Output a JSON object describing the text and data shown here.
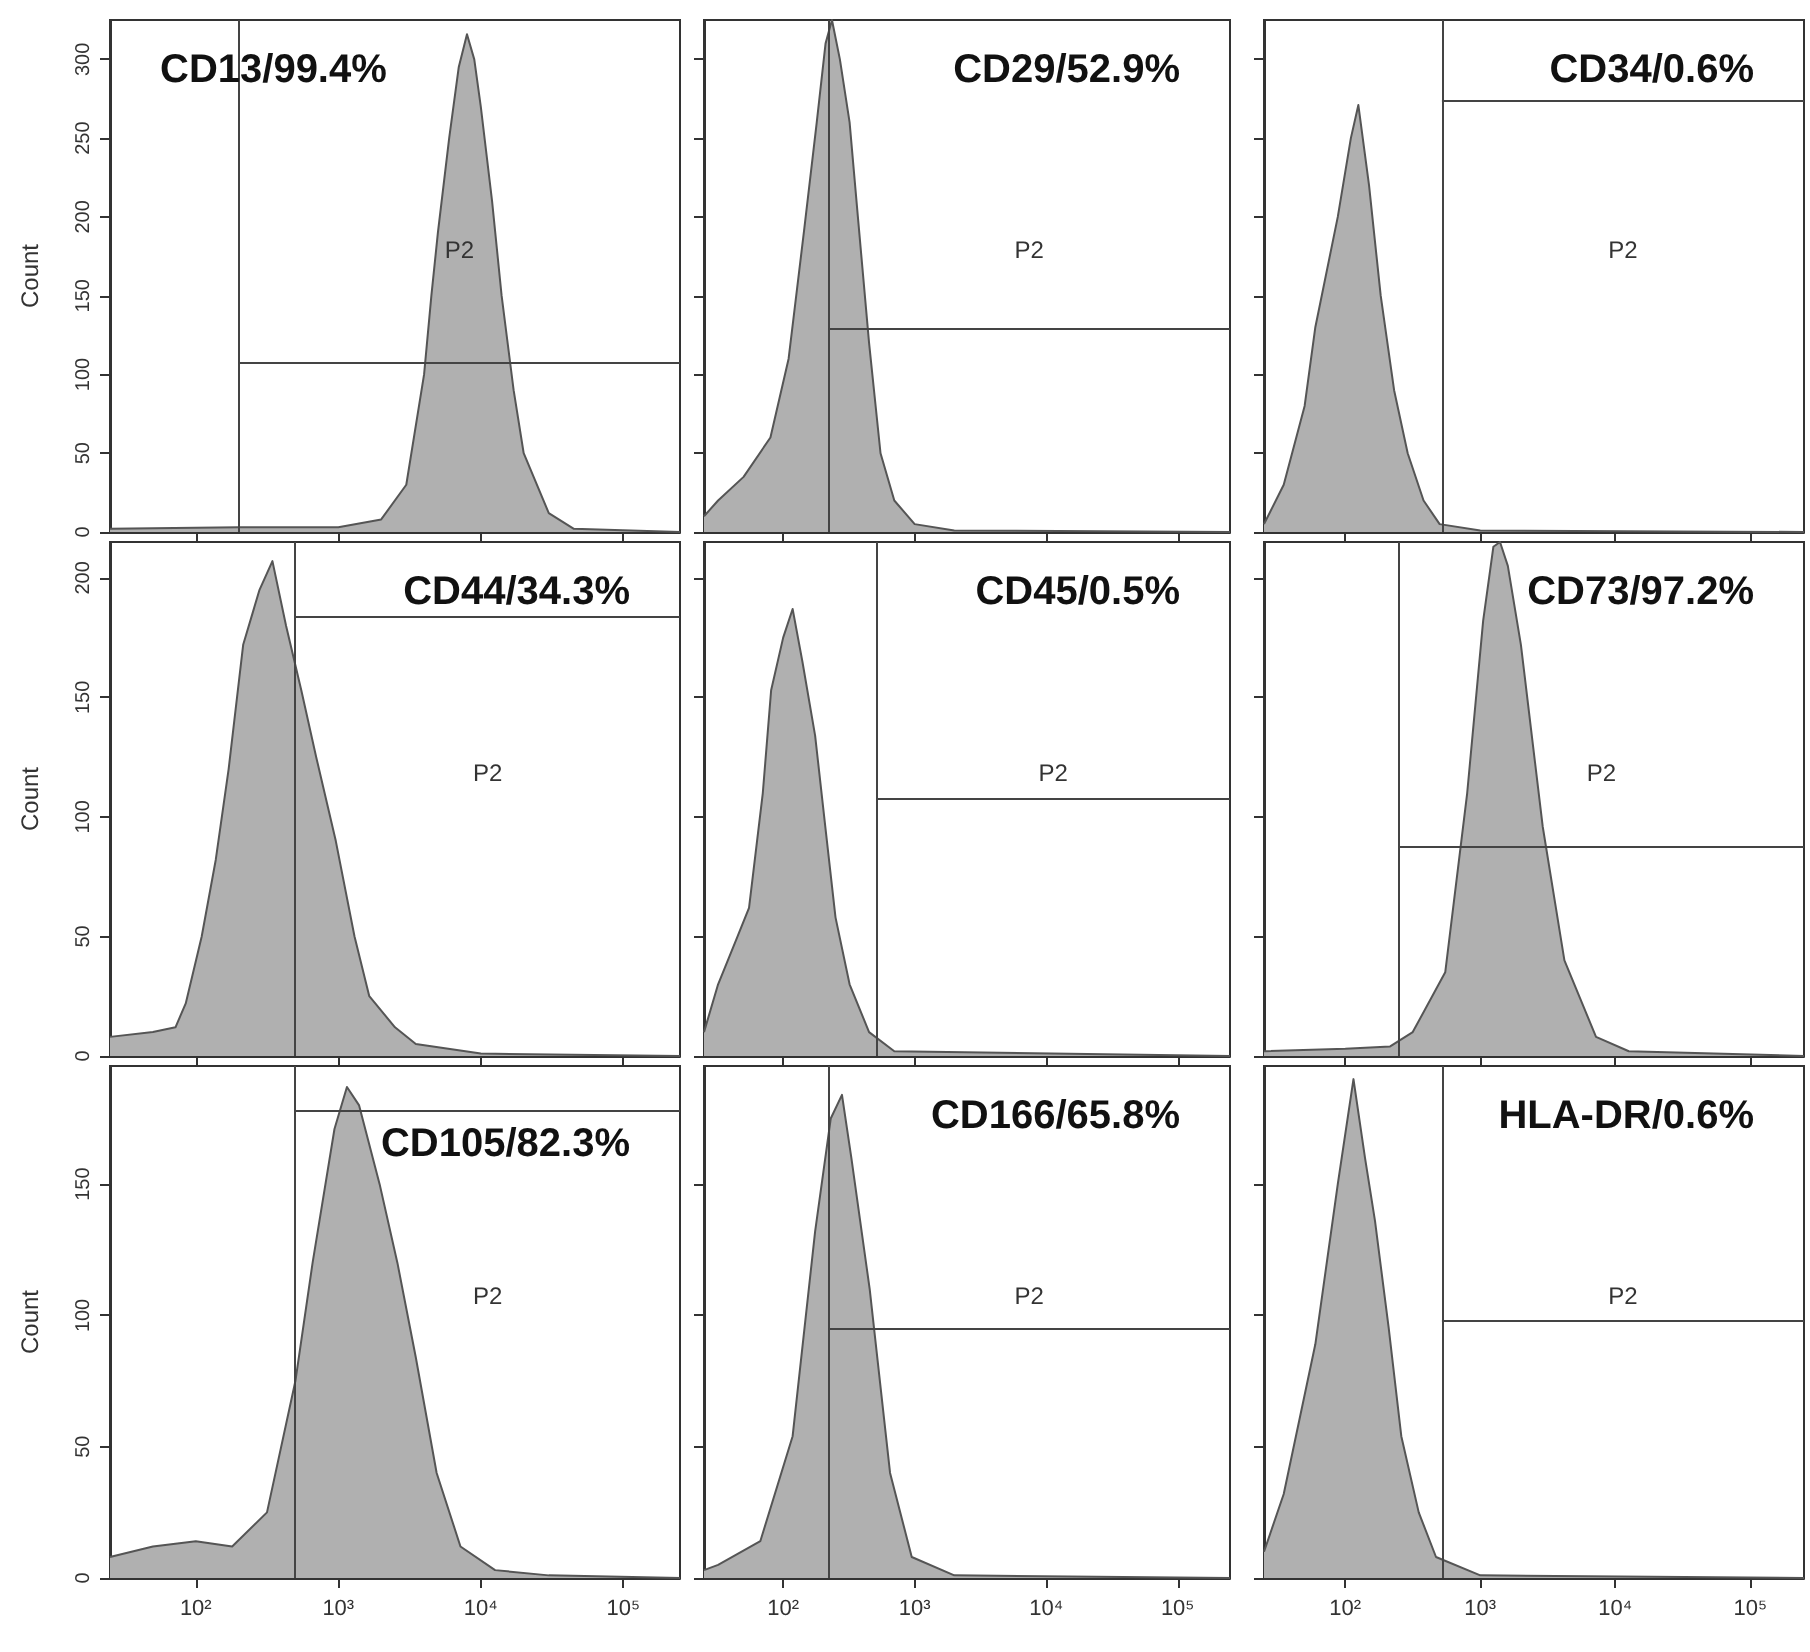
{
  "chart_data": [
    {
      "type": "area",
      "title": "CD13/99.4%",
      "ylabel": "Count",
      "x": [
        25,
        200,
        1000,
        2000,
        3000,
        4000,
        4500,
        5000,
        6000,
        7000,
        8000,
        9000,
        10000,
        12000,
        14000,
        17000,
        20000,
        30000,
        45000,
        250000
      ],
      "series": [
        {
          "color": "#b0b0b0",
          "values": [
            2,
            3,
            3,
            8,
            30,
            100,
            150,
            190,
            250,
            295,
            316,
            300,
            270,
            210,
            150,
            90,
            50,
            12,
            2,
            0
          ]
        }
      ],
      "xlim": [
        25,
        250000
      ],
      "xticks": [
        {
          "value": 100,
          "label": null
        },
        {
          "value": 1000,
          "label": null
        },
        {
          "value": 10000,
          "label": null
        },
        {
          "value": 100000,
          "label": null
        }
      ],
      "ylim": [
        0,
        325
      ],
      "yticks": [
        0,
        50,
        100,
        150,
        200,
        250,
        300
      ],
      "log": "x",
      "tick_labels": "y",
      "grid": false,
      "marker": "none",
      "ref_lines": [
        {
          "axis": "x",
          "value": 200
        },
        {
          "axis": "y",
          "value": 107,
          "label": "P2"
        }
      ]
    },
    {
      "type": "area",
      "title": "CD29/52.9%",
      "x": [
        25,
        32,
        50,
        80,
        110,
        145,
        180,
        210,
        235,
        270,
        320,
        370,
        450,
        550,
        700,
        1000,
        2000,
        250000
      ],
      "series": [
        {
          "color": "#b0b0b0",
          "values": [
            10,
            20,
            35,
            60,
            110,
            193,
            260,
            310,
            325,
            300,
            260,
            200,
            120,
            50,
            20,
            5,
            1,
            0
          ]
        }
      ],
      "xlim": [
        25,
        250000
      ],
      "xticks": [
        {
          "value": 100,
          "label": null
        },
        {
          "value": 1000,
          "label": null
        },
        {
          "value": 10000,
          "label": null
        },
        {
          "value": 100000,
          "label": null
        }
      ],
      "ylim": [
        0,
        325
      ],
      "yticks": [
        {
          "value": 0,
          "label": null
        },
        {
          "value": 50,
          "label": null
        },
        {
          "value": 100,
          "label": null
        },
        {
          "value": 150,
          "label": null
        },
        {
          "value": 200,
          "label": null
        },
        {
          "value": 250,
          "label": null
        },
        {
          "value": 300,
          "label": null
        }
      ],
      "log": "x",
      "tick_labels": false,
      "grid": false,
      "marker": "none",
      "ref_lines": [
        {
          "axis": "x",
          "value": 220
        },
        {
          "axis": "y",
          "value": 129,
          "label": "P2"
        }
      ]
    },
    {
      "type": "area",
      "title": "CD34/0.6%",
      "x": [
        25,
        35,
        50,
        60,
        88,
        110,
        125,
        150,
        183,
        230,
        290,
        380,
        500,
        1000,
        250000
      ],
      "series": [
        {
          "color": "#b0b0b0",
          "values": [
            5,
            30,
            80,
            130,
            200,
            250,
            271,
            220,
            150,
            90,
            50,
            20,
            5,
            1,
            0
          ]
        }
      ],
      "xlim": [
        25,
        250000
      ],
      "xticks": [
        {
          "value": 100,
          "label": null
        },
        {
          "value": 1000,
          "label": null
        },
        {
          "value": 10000,
          "label": null
        },
        {
          "value": 100000,
          "label": null
        }
      ],
      "ylim": [
        0,
        325
      ],
      "yticks": [
        {
          "value": 0,
          "label": null
        },
        {
          "value": 50,
          "label": null
        },
        {
          "value": 100,
          "label": null
        },
        {
          "value": 150,
          "label": null
        },
        {
          "value": 200,
          "label": null
        },
        {
          "value": 250,
          "label": null
        },
        {
          "value": 300,
          "label": null
        }
      ],
      "log": "x",
      "tick_labels": false,
      "grid": false,
      "marker": "none",
      "ref_lines": [
        {
          "axis": "x",
          "value": 520
        },
        {
          "axis": "y",
          "value": 274,
          "label": "P2"
        }
      ]
    },
    {
      "type": "area",
      "title": "CD44/34.3%",
      "ylabel": "Count",
      "x": [
        25,
        50,
        72,
        85,
        110,
        138,
        170,
        215,
        280,
        345,
        430,
        550,
        700,
        960,
        1300,
        1650,
        2500,
        3500,
        10000,
        250000
      ],
      "series": [
        {
          "color": "#b0b0b0",
          "values": [
            8,
            10,
            12,
            22,
            50,
            82,
            120,
            172,
            195,
            207,
            180,
            153,
            125,
            90,
            50,
            25,
            12,
            5,
            1,
            0
          ]
        }
      ],
      "xlim": [
        25,
        250000
      ],
      "xticks": [
        {
          "value": 100,
          "label": null
        },
        {
          "value": 1000,
          "label": null
        },
        {
          "value": 10000,
          "label": null
        },
        {
          "value": 100000,
          "label": null
        }
      ],
      "ylim": [
        0,
        215
      ],
      "yticks": [
        0,
        50,
        100,
        150,
        200
      ],
      "log": "x",
      "tick_labels": "y",
      "grid": false,
      "marker": "none",
      "ref_lines": [
        {
          "axis": "x",
          "value": 500
        },
        {
          "axis": "y",
          "value": 184,
          "label": "P2"
        }
      ]
    },
    {
      "type": "area",
      "title": "CD45/0.5%",
      "x": [
        25,
        32,
        45,
        55,
        70,
        81,
        100,
        118,
        140,
        175,
        210,
        250,
        320,
        450,
        700,
        250000
      ],
      "series": [
        {
          "color": "#b0b0b0",
          "values": [
            10,
            30,
            50,
            62,
            110,
            153,
            175,
            187,
            165,
            134,
            95,
            58,
            30,
            10,
            2,
            0
          ]
        }
      ],
      "xlim": [
        25,
        250000
      ],
      "xticks": [
        {
          "value": 100,
          "label": null
        },
        {
          "value": 1000,
          "label": null
        },
        {
          "value": 10000,
          "label": null
        },
        {
          "value": 100000,
          "label": null
        }
      ],
      "ylim": [
        0,
        215
      ],
      "yticks": [
        {
          "value": 0,
          "label": null
        },
        {
          "value": 50,
          "label": null
        },
        {
          "value": 100,
          "label": null
        },
        {
          "value": 150,
          "label": null
        },
        {
          "value": 200,
          "label": null
        }
      ],
      "log": "x",
      "tick_labels": false,
      "grid": false,
      "marker": "none",
      "ref_lines": [
        {
          "axis": "x",
          "value": 510
        },
        {
          "axis": "y",
          "value": 108,
          "label": "P2"
        }
      ]
    },
    {
      "type": "area",
      "title": "CD73/97.2%",
      "x": [
        25,
        100,
        215,
        316,
        550,
        800,
        1050,
        1250,
        1400,
        1600,
        2000,
        2900,
        4200,
        7200,
        12600,
        250000
      ],
      "series": [
        {
          "color": "#b0b0b0",
          "values": [
            2,
            3,
            4,
            10,
            35,
            110,
            182,
            213,
            215,
            205,
            172,
            96,
            40,
            8,
            2,
            0
          ]
        }
      ],
      "xlim": [
        25,
        250000
      ],
      "xticks": [
        {
          "value": 100,
          "label": null
        },
        {
          "value": 1000,
          "label": null
        },
        {
          "value": 10000,
          "label": null
        },
        {
          "value": 100000,
          "label": null
        }
      ],
      "ylim": [
        0,
        215
      ],
      "yticks": [
        {
          "value": 0,
          "label": null
        },
        {
          "value": 50,
          "label": null
        },
        {
          "value": 100,
          "label": null
        },
        {
          "value": 150,
          "label": null
        },
        {
          "value": 200,
          "label": null
        }
      ],
      "log": "x",
      "tick_labels": false,
      "grid": false,
      "marker": "none",
      "ref_lines": [
        {
          "axis": "x",
          "value": 250
        },
        {
          "axis": "y",
          "value": 88,
          "label": "P2"
        }
      ]
    },
    {
      "type": "area",
      "title": "CD105/82.3%",
      "ylabel": "Count",
      "x": [
        25,
        50,
        100,
        180,
        316,
        500,
        660,
        940,
        1150,
        1400,
        1950,
        2600,
        3500,
        4900,
        7200,
        12600,
        30000,
        250000
      ],
      "series": [
        {
          "color": "#b0b0b0",
          "values": [
            8,
            12,
            14,
            12,
            25,
            75,
            120,
            171,
            187,
            180,
            150,
            120,
            84,
            40,
            12,
            3,
            1,
            0
          ]
        }
      ],
      "xlim": [
        25,
        250000
      ],
      "xticks": [
        {
          "value": 100,
          "label": "10²"
        },
        {
          "value": 1000,
          "label": "10³"
        },
        {
          "value": 10000,
          "label": "10⁴"
        },
        {
          "value": 100000,
          "label": "10⁵"
        }
      ],
      "ylim": [
        0,
        195
      ],
      "yticks": [
        0,
        50,
        100,
        150
      ],
      "log": "x",
      "grid": false,
      "marker": "none",
      "ref_lines": [
        {
          "axis": "x",
          "value": 500
        },
        {
          "axis": "y",
          "value": 178,
          "label": "P2"
        }
      ]
    },
    {
      "type": "area",
      "title": "CD166/65.8%",
      "x": [
        25,
        32,
        67,
        118,
        175,
        230,
        280,
        330,
        455,
        650,
        950,
        2000,
        250000
      ],
      "series": [
        {
          "color": "#b0b0b0",
          "values": [
            3,
            5,
            14,
            54,
            132,
            175,
            184,
            160,
            110,
            40,
            8,
            1,
            0
          ]
        }
      ],
      "xlim": [
        25,
        250000
      ],
      "xticks": [
        {
          "value": 100,
          "label": "10²"
        },
        {
          "value": 1000,
          "label": "10³"
        },
        {
          "value": 10000,
          "label": "10⁴"
        },
        {
          "value": 100000,
          "label": "10⁵"
        }
      ],
      "ylim": [
        0,
        195
      ],
      "yticks": [
        {
          "value": 0,
          "label": null
        },
        {
          "value": 50,
          "label": null
        },
        {
          "value": 100,
          "label": null
        },
        {
          "value": 150,
          "label": null
        }
      ],
      "log": "x",
      "tick_labels": "x",
      "grid": false,
      "marker": "none",
      "ref_lines": [
        {
          "axis": "x",
          "value": 220
        },
        {
          "axis": "y",
          "value": 95,
          "label": "P2"
        }
      ]
    },
    {
      "type": "area",
      "title": "HLA-DR/0.6%",
      "x": [
        25,
        35,
        60,
        88,
        115,
        140,
        166,
        210,
        260,
        350,
        470,
        1000,
        250000
      ],
      "series": [
        {
          "color": "#b0b0b0",
          "values": [
            10,
            32,
            89,
            150,
            190,
            160,
            136,
            95,
            54,
            25,
            8,
            1,
            0
          ]
        }
      ],
      "xlim": [
        25,
        250000
      ],
      "xticks": [
        {
          "value": 100,
          "label": "10²"
        },
        {
          "value": 1000,
          "label": "10³"
        },
        {
          "value": 10000,
          "label": "10⁴"
        },
        {
          "value": 100000,
          "label": "10⁵"
        }
      ],
      "ylim": [
        0,
        195
      ],
      "yticks": [
        {
          "value": 0,
          "label": null
        },
        {
          "value": 50,
          "label": null
        },
        {
          "value": 100,
          "label": null
        },
        {
          "value": 150,
          "label": null
        }
      ],
      "log": "x",
      "tick_labels": "x",
      "grid": false,
      "marker": "none",
      "ref_lines": [
        {
          "axis": "x",
          "value": 520
        },
        {
          "axis": "y",
          "value": 98,
          "label": "P2"
        }
      ]
    }
  ]
}
